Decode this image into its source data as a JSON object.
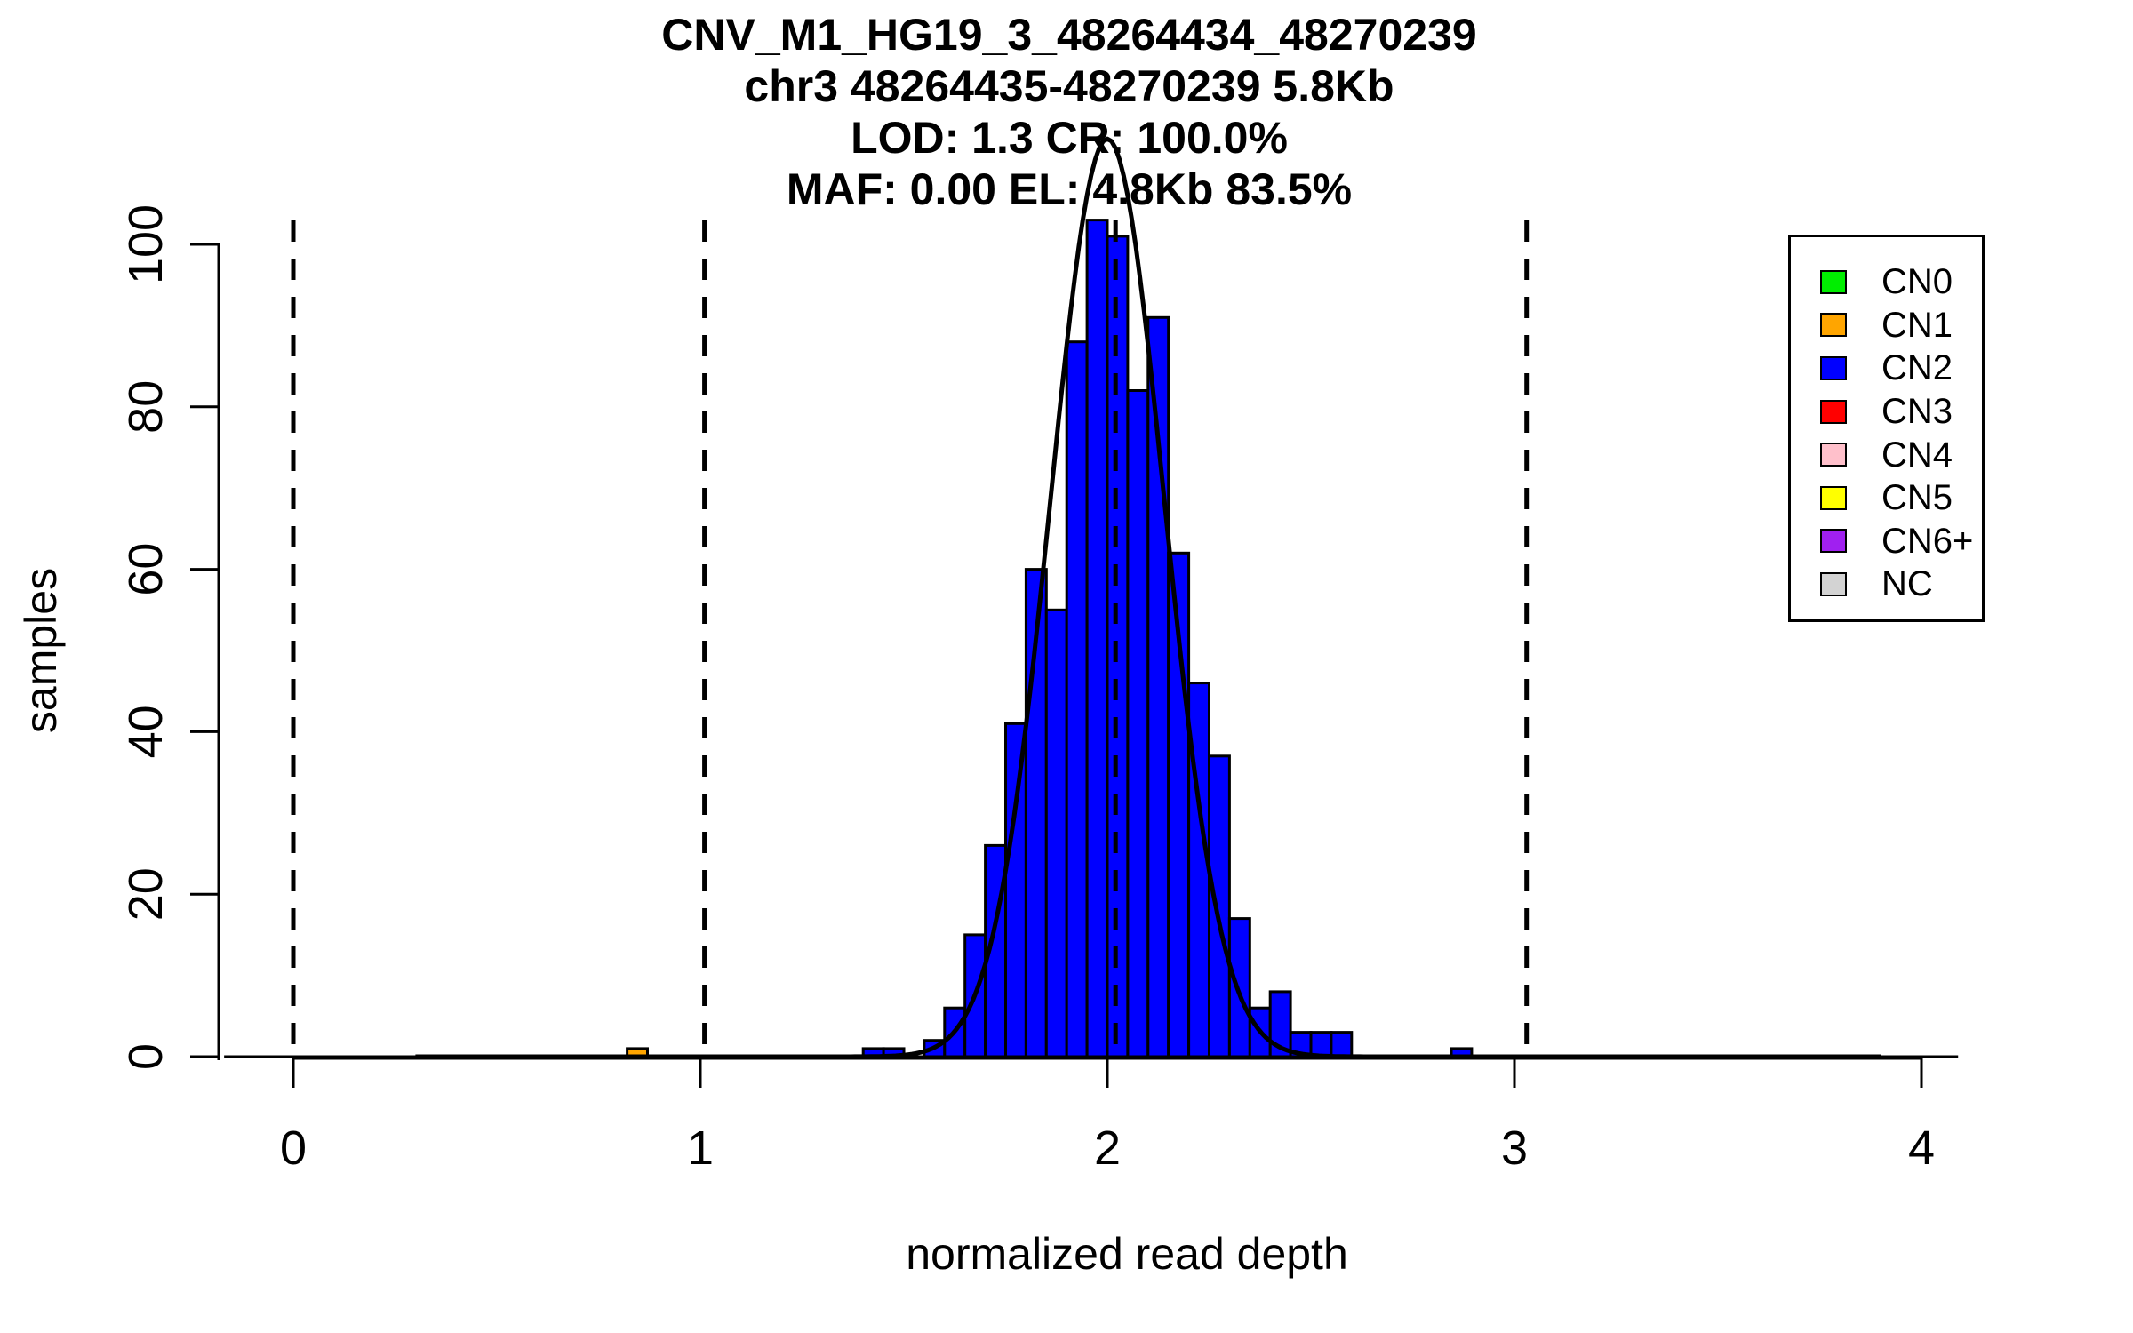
{
  "title": {
    "lines": [
      "CNV_M1_HG19_3_48264434_48270239",
      "chr3 48264435-48270239 5.8Kb",
      "LOD: 1.3 CR: 100.0%",
      "MAF: 0.00 EL: 4.8Kb 83.5%"
    ]
  },
  "axes": {
    "x": {
      "label": "normalized read depth",
      "ticks": [
        "0",
        "1",
        "2",
        "3",
        "4"
      ]
    },
    "y": {
      "label": "samples",
      "ticks": [
        "0",
        "20",
        "40",
        "60",
        "80",
        "100"
      ]
    }
  },
  "legend": {
    "items": [
      {
        "label": "CN0",
        "color": "#00EE00"
      },
      {
        "label": "CN1",
        "color": "#FFA500"
      },
      {
        "label": "CN2",
        "color": "#0000FF"
      },
      {
        "label": "CN3",
        "color": "#FF0000"
      },
      {
        "label": "CN4",
        "color": "#FFC0CB"
      },
      {
        "label": "CN5",
        "color": "#FFFF00"
      },
      {
        "label": "CN6+",
        "color": "#A020F0"
      },
      {
        "label": "NC",
        "color": "#D3D3D3"
      }
    ]
  },
  "colors": {
    "bar_fill": "#0000FF",
    "bar_stroke": "#000000",
    "curve": "#000000",
    "dashed_line": "#000000"
  },
  "chart_data": {
    "type": "bar",
    "subtype": "histogram",
    "title": "CNV_M1_HG19_3_48264434_48270239",
    "subtitle": [
      "chr3 48264435-48270239 5.8Kb",
      "LOD: 1.3 CR: 100.0%",
      "MAF: 0.00 EL: 4.8Kb 83.5%"
    ],
    "xlabel": "normalized read depth",
    "ylabel": "samples",
    "xlim": [
      -0.25,
      4.3
    ],
    "ylim": [
      0,
      100
    ],
    "x_ticks": [
      0,
      1,
      2,
      3,
      4
    ],
    "y_ticks": [
      0,
      20,
      40,
      60,
      80,
      100
    ],
    "grid": false,
    "legend_position": "top-right",
    "bin_width": 0.05,
    "bars": [
      {
        "x": 0.82,
        "count": 1,
        "cn": "CN1",
        "color": "#FFA500"
      },
      {
        "x": 1.4,
        "count": 1,
        "cn": "CN2"
      },
      {
        "x": 1.45,
        "count": 1,
        "cn": "CN2"
      },
      {
        "x": 1.5,
        "count": 0,
        "cn": "CN2"
      },
      {
        "x": 1.55,
        "count": 2,
        "cn": "CN2"
      },
      {
        "x": 1.6,
        "count": 6,
        "cn": "CN2"
      },
      {
        "x": 1.65,
        "count": 15,
        "cn": "CN2"
      },
      {
        "x": 1.7,
        "count": 26,
        "cn": "CN2"
      },
      {
        "x": 1.75,
        "count": 41,
        "cn": "CN2"
      },
      {
        "x": 1.8,
        "count": 60,
        "cn": "CN2"
      },
      {
        "x": 1.85,
        "count": 55,
        "cn": "CN2"
      },
      {
        "x": 1.9,
        "count": 88,
        "cn": "CN2"
      },
      {
        "x": 1.95,
        "count": 103,
        "cn": "CN2"
      },
      {
        "x": 2.0,
        "count": 101,
        "cn": "CN2"
      },
      {
        "x": 2.05,
        "count": 82,
        "cn": "CN2"
      },
      {
        "x": 2.1,
        "count": 91,
        "cn": "CN2"
      },
      {
        "x": 2.15,
        "count": 62,
        "cn": "CN2"
      },
      {
        "x": 2.2,
        "count": 46,
        "cn": "CN2"
      },
      {
        "x": 2.25,
        "count": 37,
        "cn": "CN2"
      },
      {
        "x": 2.3,
        "count": 17,
        "cn": "CN2"
      },
      {
        "x": 2.35,
        "count": 6,
        "cn": "CN2"
      },
      {
        "x": 2.4,
        "count": 8,
        "cn": "CN2"
      },
      {
        "x": 2.45,
        "count": 3,
        "cn": "CN2"
      },
      {
        "x": 2.5,
        "count": 3,
        "cn": "CN2"
      },
      {
        "x": 2.55,
        "count": 3,
        "cn": "CN2"
      },
      {
        "x": 2.845,
        "count": 1,
        "cn": "CN2"
      }
    ],
    "dashed_lines_x": [
      0,
      1.01,
      2.02,
      3.03
    ],
    "fit_curve": {
      "shape": "gaussian",
      "amplitude_samples": 113,
      "mean": 2.0,
      "sigma": 0.14
    },
    "zero_line_x": [
      -0.17,
      4.09
    ]
  }
}
